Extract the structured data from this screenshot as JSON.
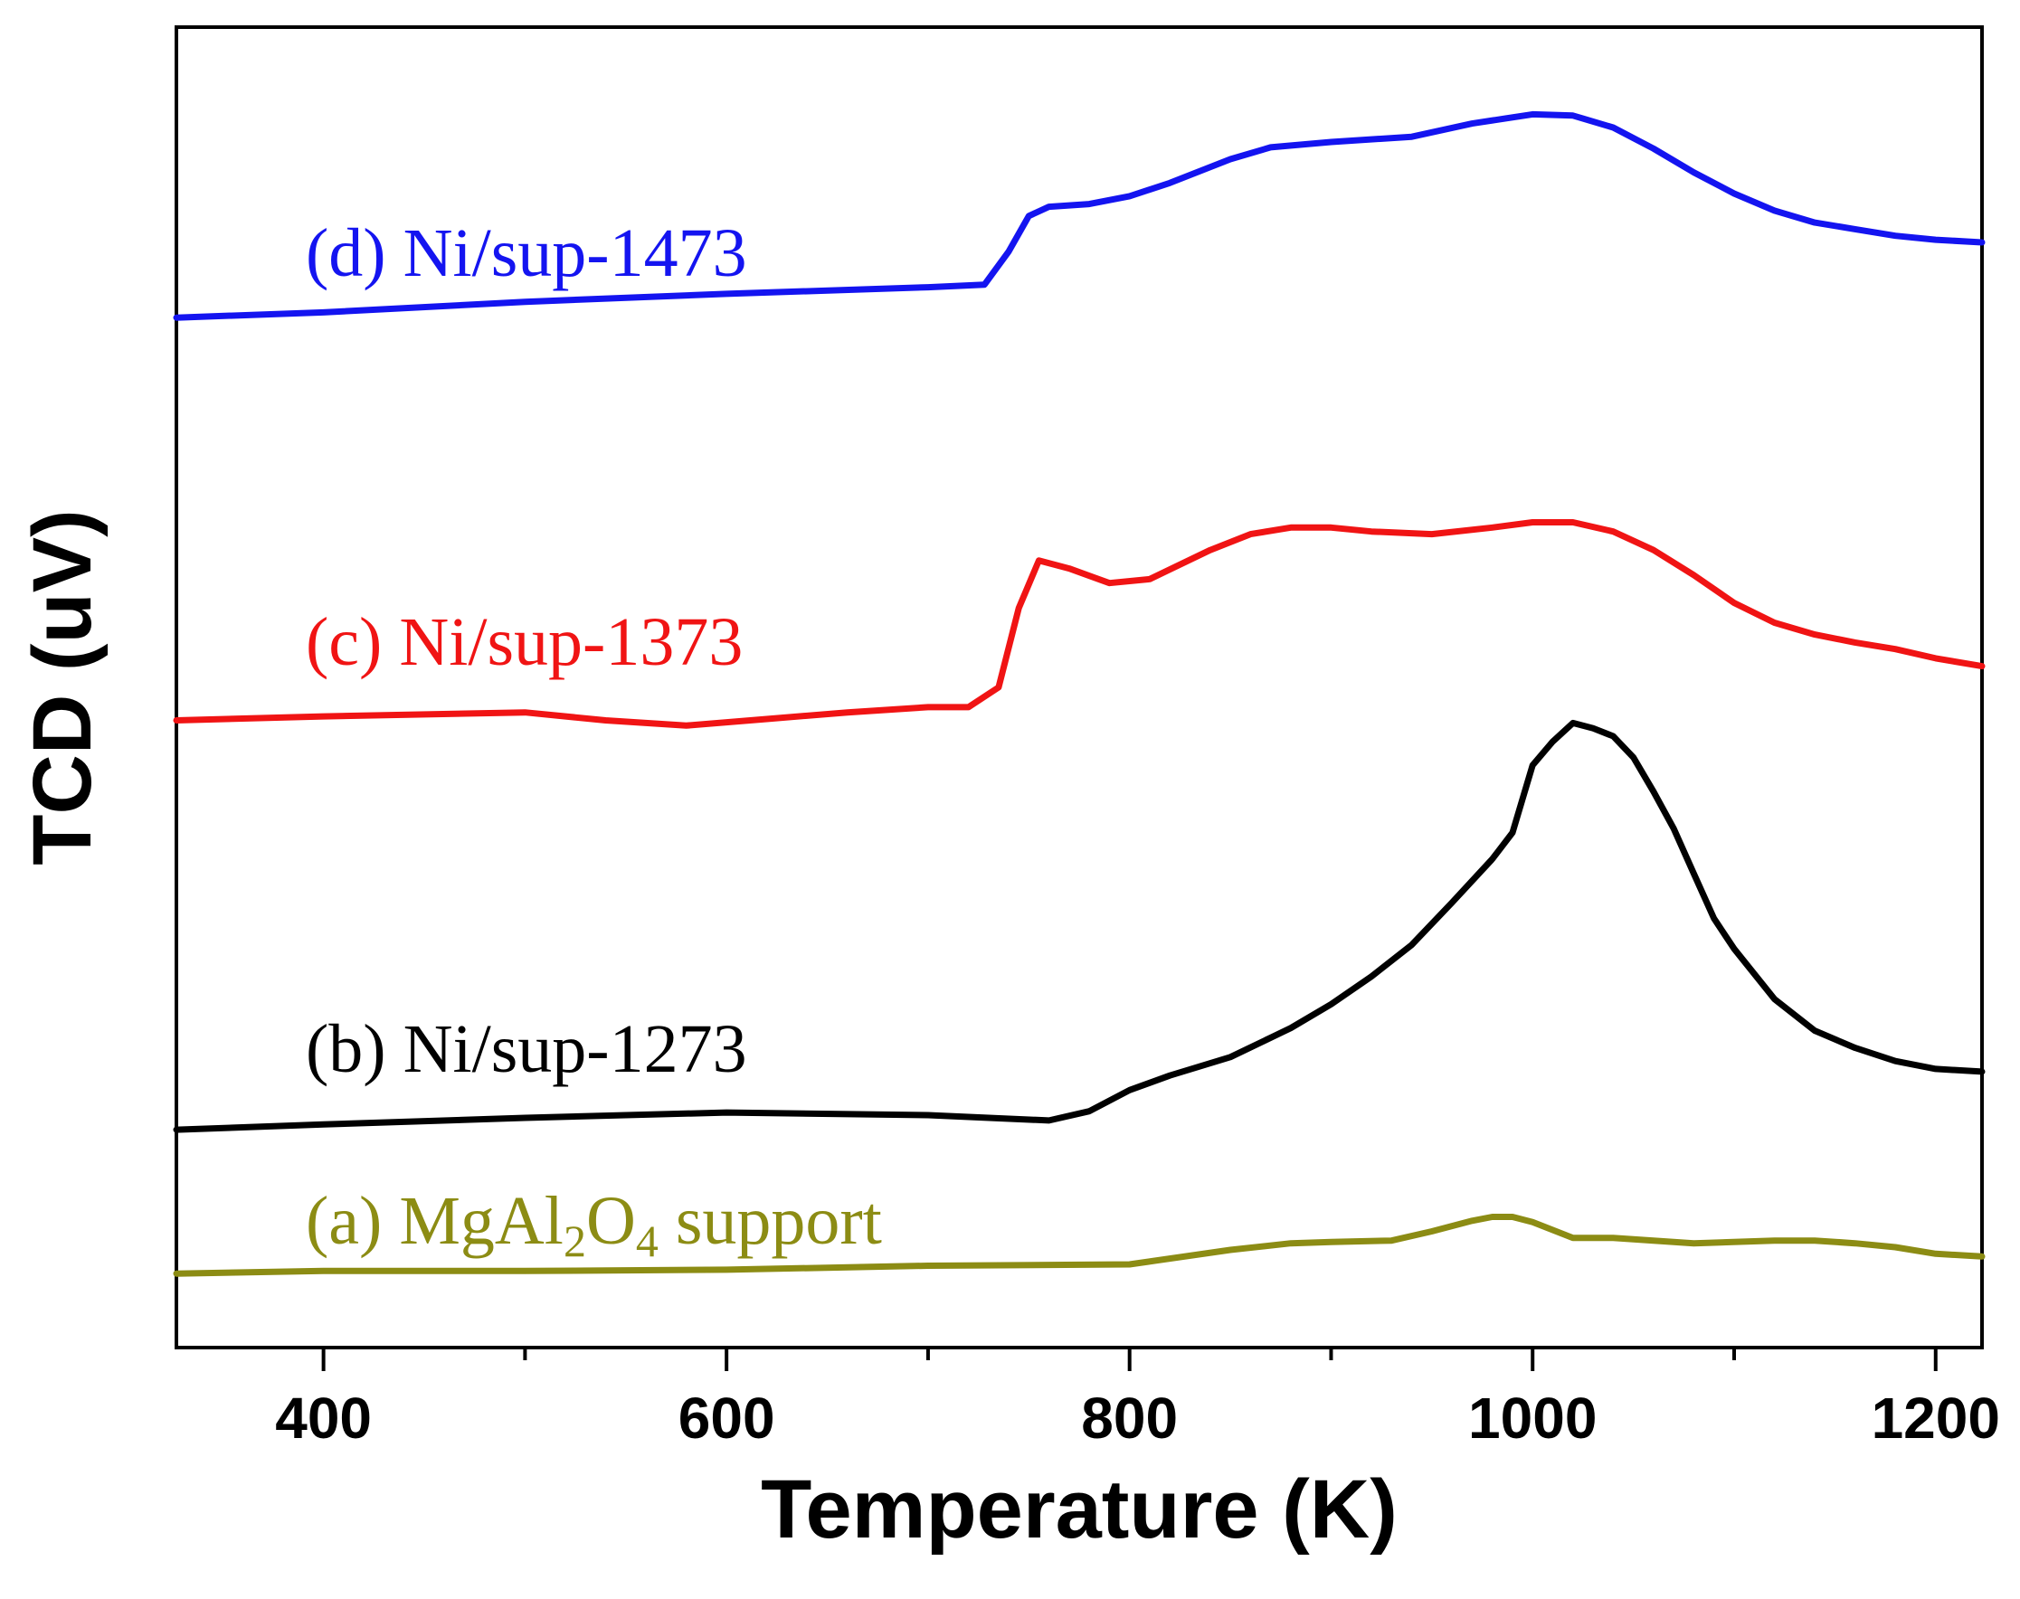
{
  "chart_data": {
    "type": "line",
    "title": "",
    "xlabel": "Temperature (K)",
    "ylabel": "TCD (uV)",
    "xlim": [
      327,
      1223
    ],
    "ylim": [
      0,
      100
    ],
    "x_ticks": [
      400,
      600,
      800,
      1000,
      1200
    ],
    "x_tick_labels": [
      "400",
      "600",
      "800",
      "1000",
      "1200"
    ],
    "x_minor_ticks": [
      500,
      700,
      900,
      1100
    ],
    "y_ticks_shown": false,
    "grid": false,
    "legend": "inline-labels",
    "series": [
      {
        "name": "(d) Ni/sup-1473",
        "label_parts": {
          "text": "(d) Ni/sup-1473"
        },
        "color": "#1414f0",
        "points": [
          [
            327,
            78
          ],
          [
            400,
            78.4
          ],
          [
            500,
            79.2
          ],
          [
            600,
            79.8
          ],
          [
            700,
            80.3
          ],
          [
            728,
            80.5
          ],
          [
            740,
            83
          ],
          [
            750,
            85.7
          ],
          [
            760,
            86.4
          ],
          [
            780,
            86.6
          ],
          [
            800,
            87.2
          ],
          [
            820,
            88.2
          ],
          [
            850,
            90.0
          ],
          [
            870,
            90.9
          ],
          [
            900,
            91.3
          ],
          [
            940,
            91.7
          ],
          [
            970,
            92.7
          ],
          [
            1000,
            93.4
          ],
          [
            1020,
            93.3
          ],
          [
            1040,
            92.4
          ],
          [
            1060,
            90.8
          ],
          [
            1080,
            89.0
          ],
          [
            1100,
            87.4
          ],
          [
            1120,
            86.1
          ],
          [
            1140,
            85.2
          ],
          [
            1160,
            84.7
          ],
          [
            1180,
            84.2
          ],
          [
            1200,
            83.9
          ],
          [
            1223,
            83.7
          ]
        ]
      },
      {
        "name": "(c) Ni/sup-1373",
        "label_parts": {
          "text": "(c) Ni/sup-1373"
        },
        "color": "#f01414",
        "points": [
          [
            327,
            47.5
          ],
          [
            400,
            47.8
          ],
          [
            500,
            48.1
          ],
          [
            540,
            47.5
          ],
          [
            580,
            47.1
          ],
          [
            620,
            47.6
          ],
          [
            660,
            48.1
          ],
          [
            700,
            48.5
          ],
          [
            720,
            48.5
          ],
          [
            735,
            50
          ],
          [
            745,
            56
          ],
          [
            755,
            59.6
          ],
          [
            770,
            59.0
          ],
          [
            790,
            57.9
          ],
          [
            810,
            58.2
          ],
          [
            840,
            60.4
          ],
          [
            860,
            61.6
          ],
          [
            880,
            62.1
          ],
          [
            900,
            62.1
          ],
          [
            920,
            61.8
          ],
          [
            950,
            61.6
          ],
          [
            980,
            62.1
          ],
          [
            1000,
            62.5
          ],
          [
            1020,
            62.5
          ],
          [
            1040,
            61.8
          ],
          [
            1060,
            60.4
          ],
          [
            1080,
            58.5
          ],
          [
            1100,
            56.4
          ],
          [
            1120,
            54.9
          ],
          [
            1140,
            54.0
          ],
          [
            1160,
            53.4
          ],
          [
            1180,
            52.9
          ],
          [
            1200,
            52.2
          ],
          [
            1223,
            51.6
          ]
        ]
      },
      {
        "name": "(b) Ni/sup-1273",
        "label_parts": {
          "text": "(b) Ni/sup-1273"
        },
        "color": "#000000",
        "points": [
          [
            327,
            16.5
          ],
          [
            400,
            16.9
          ],
          [
            500,
            17.4
          ],
          [
            600,
            17.8
          ],
          [
            700,
            17.6
          ],
          [
            760,
            17.2
          ],
          [
            780,
            17.9
          ],
          [
            800,
            19.5
          ],
          [
            820,
            20.6
          ],
          [
            850,
            22.0
          ],
          [
            880,
            24.2
          ],
          [
            900,
            26.0
          ],
          [
            920,
            28.1
          ],
          [
            940,
            30.5
          ],
          [
            960,
            33.7
          ],
          [
            980,
            37.0
          ],
          [
            990,
            39.0
          ],
          [
            1000,
            44.1
          ],
          [
            1010,
            45.9
          ],
          [
            1020,
            47.3
          ],
          [
            1030,
            46.9
          ],
          [
            1040,
            46.3
          ],
          [
            1050,
            44.7
          ],
          [
            1060,
            42.1
          ],
          [
            1070,
            39.3
          ],
          [
            1080,
            35.9
          ],
          [
            1090,
            32.5
          ],
          [
            1100,
            30.2
          ],
          [
            1120,
            26.4
          ],
          [
            1140,
            24.0
          ],
          [
            1160,
            22.7
          ],
          [
            1180,
            21.7
          ],
          [
            1200,
            21.1
          ],
          [
            1223,
            20.9
          ]
        ]
      },
      {
        "name": "(a) MgAl2O4 support",
        "label_parts": {
          "prefix": "(a) MgAl",
          "sub1": "2",
          "mid": "O",
          "sub2": "4",
          "suffix": " support"
        },
        "color": "#8c8c14",
        "points": [
          [
            327,
            5.6
          ],
          [
            400,
            5.8
          ],
          [
            500,
            5.8
          ],
          [
            600,
            5.9
          ],
          [
            700,
            6.2
          ],
          [
            800,
            6.3
          ],
          [
            850,
            7.4
          ],
          [
            880,
            7.9
          ],
          [
            900,
            8.0
          ],
          [
            930,
            8.1
          ],
          [
            950,
            8.8
          ],
          [
            970,
            9.6
          ],
          [
            980,
            9.9
          ],
          [
            990,
            9.9
          ],
          [
            1000,
            9.5
          ],
          [
            1020,
            8.3
          ],
          [
            1040,
            8.3
          ],
          [
            1080,
            7.9
          ],
          [
            1120,
            8.1
          ],
          [
            1140,
            8.1
          ],
          [
            1160,
            7.9
          ],
          [
            1180,
            7.6
          ],
          [
            1200,
            7.1
          ],
          [
            1223,
            6.9
          ]
        ]
      }
    ]
  }
}
